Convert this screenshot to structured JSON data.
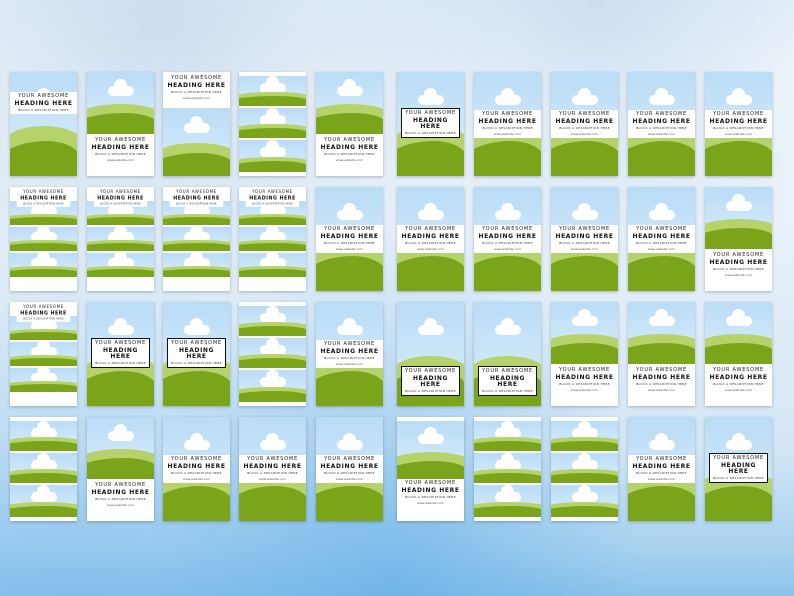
{
  "template_text": {
    "line1": "YOUR AWESOME",
    "line2": "HEADING HERE",
    "subtitle": "BLOCK A DESCRIPTION HERE",
    "website": "www.website.com"
  },
  "colors": {
    "sky": "#b9dcf6",
    "grass_light": "#b5d36a",
    "grass_dark": "#7aa51b",
    "card": "#ffffff"
  },
  "grid": {
    "rows": 4,
    "columns": 10,
    "template_count": 40
  }
}
